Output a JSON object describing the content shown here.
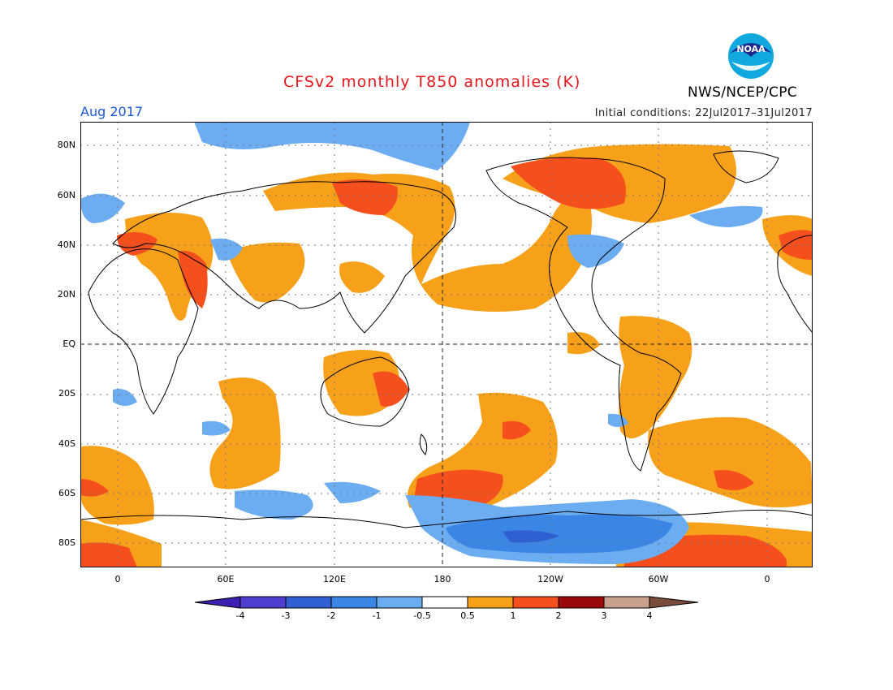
{
  "header": {
    "title": "CFSv2 monthly T850 anomalies (K)",
    "month": "Aug 2017",
    "initial_conditions": "Initial conditions: 22Jul2017–31Jul2017",
    "org": "NWS/NCEP/CPC",
    "logo_text": "NOAA"
  },
  "axes": {
    "lat_labels": [
      "80N",
      "60N",
      "40N",
      "20N",
      "EQ",
      "20S",
      "40S",
      "60S",
      "80S"
    ],
    "lon_labels": [
      "0",
      "60E",
      "120E",
      "180",
      "120W",
      "60W",
      "0"
    ]
  },
  "colorbar": {
    "labels": [
      "-4",
      "-3",
      "-2",
      "-1",
      "-0.5",
      "0.5",
      "1",
      "2",
      "3",
      "4"
    ],
    "colors": [
      "#3c1fb0",
      "#2f5fd1",
      "#3b86e4",
      "#6cacf1",
      "#ffffff",
      "#f7a11a",
      "#f64f1e",
      "#c91414",
      "#9a0a0a",
      "#c9a08c",
      "#7a4a3a"
    ]
  },
  "legend_colors": {
    "warm_1": "#f7a11a",
    "warm_2": "#f64f1e",
    "cool_1": "#6cacf1",
    "cool_2": "#3b86e4",
    "cool_3": "#2f5fd1",
    "title_red": "#e8171b",
    "month_blue": "#1a58d8"
  }
}
